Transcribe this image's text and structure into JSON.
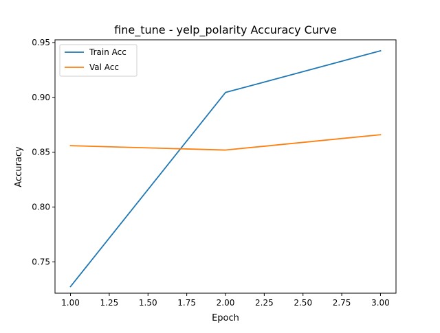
{
  "chart_data": {
    "type": "line",
    "title": "fine_tune - yelp_polarity Accuracy Curve",
    "xlabel": "Epoch",
    "ylabel": "Accuracy",
    "xlim": [
      0.9,
      3.1
    ],
    "ylim": [
      0.7215,
      0.9525
    ],
    "x_ticks": [
      1.0,
      1.25,
      1.5,
      1.75,
      2.0,
      2.25,
      2.5,
      2.75,
      3.0
    ],
    "x_tick_labels": [
      "1.00",
      "1.25",
      "1.50",
      "1.75",
      "2.00",
      "2.25",
      "2.50",
      "2.75",
      "3.00"
    ],
    "y_ticks": [
      0.75,
      0.8,
      0.85,
      0.9,
      0.95
    ],
    "y_tick_labels": [
      "0.75",
      "0.80",
      "0.85",
      "0.90",
      "0.95"
    ],
    "grid": false,
    "legend_position": "top-left",
    "series": [
      {
        "name": "Train Acc",
        "color": "#1f77b4",
        "x": [
          1,
          2,
          3
        ],
        "y": [
          0.7275,
          0.9045,
          0.9425
        ]
      },
      {
        "name": "Val Acc",
        "color": "#ff7f0e",
        "x": [
          1,
          2,
          3
        ],
        "y": [
          0.856,
          0.852,
          0.866
        ]
      }
    ]
  }
}
